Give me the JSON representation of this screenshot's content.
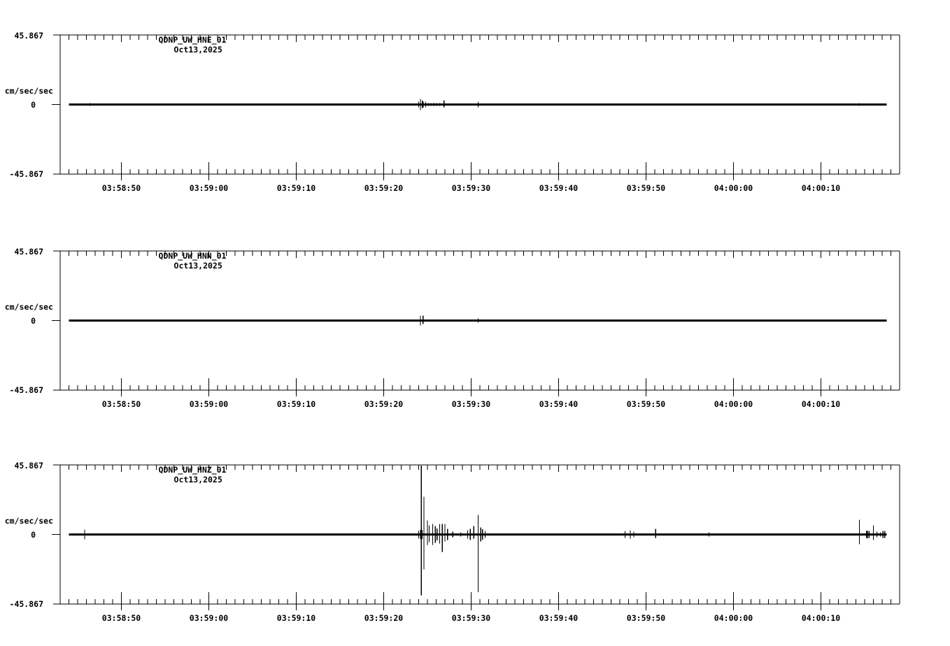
{
  "app": {
    "background_color": "#ffffff",
    "foreground_color": "#000000",
    "kind": "three-component seismogram (acceleration traces)"
  },
  "chart_data": {
    "type": "line",
    "x_axis": {
      "start": "03:58:43.0",
      "end": "04:00:19.0",
      "major_tick_interval_sec": 10,
      "minor_tick_interval_sec": 1,
      "major_tick_labels": [
        "03:58:50",
        "03:59:00",
        "03:59:10",
        "03:59:20",
        "03:59:30",
        "03:59:40",
        "03:59:50",
        "04:00:00",
        "04:00:10"
      ]
    },
    "y_axis": {
      "max": 45.867,
      "min": -45.867,
      "max_label": "45.867",
      "min_label": "-45.867",
      "zero_label": "0",
      "unit": "cm/sec/sec"
    },
    "panels": [
      {
        "station": "QDNP_UW_HNE_01",
        "date": "Oct13,2025",
        "trace_start": "03:58:44.0",
        "trace_end": "04:00:17.5",
        "spikes": [
          {
            "time": "03:58:46.4",
            "up": 0.9,
            "down": 0.9
          },
          {
            "time": "03:59:24.0",
            "up": 1.8,
            "down": 1.8
          },
          {
            "time": "03:59:24.2",
            "up": 3.7,
            "down": 3.7
          },
          {
            "time": "03:59:24.4",
            "up": 2.8,
            "down": 2.3
          },
          {
            "time": "03:59:24.5",
            "up": 2.0,
            "down": 2.0
          },
          {
            "time": "03:59:24.8",
            "up": 1.8,
            "down": 1.8
          },
          {
            "time": "03:59:25.1",
            "up": 0.9,
            "down": 0.9
          },
          {
            "time": "03:59:25.4",
            "up": 0.9,
            "down": 0.9
          },
          {
            "time": "03:59:25.7",
            "up": 0.9,
            "down": 0.9
          },
          {
            "time": "03:59:26.0",
            "up": 0.9,
            "down": 0.9
          },
          {
            "time": "03:59:26.4",
            "up": 0.9,
            "down": 0.9
          },
          {
            "time": "03:59:26.9",
            "up": 2.8,
            "down": 1.8
          },
          {
            "time": "03:59:30.8",
            "up": 1.8,
            "down": 1.8
          },
          {
            "time": "04:00:14.4",
            "up": 0.9,
            "down": 0.9
          }
        ]
      },
      {
        "station": "QDNP_UW_HNN_01",
        "date": "Oct13,2025",
        "trace_start": "03:58:44.0",
        "trace_end": "04:00:17.5",
        "spikes": [
          {
            "time": "03:59:24.2",
            "up": 3.2,
            "down": 3.2
          },
          {
            "time": "03:59:24.5",
            "up": 3.2,
            "down": 2.3
          },
          {
            "time": "03:59:25.0",
            "up": 0.7,
            "down": 0.7
          },
          {
            "time": "03:59:25.4",
            "up": 0.7,
            "down": 0.7
          },
          {
            "time": "03:59:30.8",
            "up": 1.4,
            "down": 1.4
          },
          {
            "time": "04:00:09.6",
            "up": 0.7,
            "down": 0.7
          }
        ]
      },
      {
        "station": "QDNP_UW_HNZ_01",
        "date": "Oct13,2025",
        "trace_start": "03:58:44.0",
        "trace_end": "04:00:17.5",
        "spikes": [
          {
            "time": "03:58:45.8",
            "up": 3.2,
            "down": 3.2
          },
          {
            "time": "03:59:24.0",
            "up": 2.5,
            "down": 2.5
          },
          {
            "time": "03:59:24.2",
            "up": 3.0,
            "down": 3.0
          },
          {
            "time": "03:59:24.3",
            "up": 45.5,
            "down": 40.0
          },
          {
            "time": "03:59:24.4",
            "up": 3.0,
            "down": 3.0
          },
          {
            "time": "03:59:24.6",
            "up": 25.0,
            "down": 23.0
          },
          {
            "time": "03:59:25.0",
            "up": 9.2,
            "down": 6.9
          },
          {
            "time": "03:59:25.2",
            "up": 6.0,
            "down": 5.0
          },
          {
            "time": "03:59:25.6",
            "up": 6.9,
            "down": 6.9
          },
          {
            "time": "03:59:25.9",
            "up": 5.5,
            "down": 5.5
          },
          {
            "time": "03:59:26.1",
            "up": 4.0,
            "down": 4.0
          },
          {
            "time": "03:59:26.4",
            "up": 6.9,
            "down": 6.0
          },
          {
            "time": "03:59:26.7",
            "up": 6.9,
            "down": 11.5
          },
          {
            "time": "03:59:27.0",
            "up": 6.9,
            "down": 4.6
          },
          {
            "time": "03:59:27.3",
            "up": 3.7,
            "down": 3.7
          },
          {
            "time": "03:59:27.9",
            "up": 1.8,
            "down": 1.8
          },
          {
            "time": "03:59:28.8",
            "up": 1.4,
            "down": 1.4
          },
          {
            "time": "03:59:29.6",
            "up": 2.8,
            "down": 2.8
          },
          {
            "time": "03:59:29.9",
            "up": 3.7,
            "down": 3.7
          },
          {
            "time": "03:59:30.3",
            "up": 5.5,
            "down": 2.8
          },
          {
            "time": "03:59:30.8",
            "up": 12.9,
            "down": 38.0
          },
          {
            "time": "03:59:31.1",
            "up": 4.6,
            "down": 4.6
          },
          {
            "time": "03:59:31.3",
            "up": 3.5,
            "down": 3.5
          },
          {
            "time": "03:59:31.6",
            "up": 2.3,
            "down": 2.3
          },
          {
            "time": "03:59:47.6",
            "up": 2.3,
            "down": 2.3
          },
          {
            "time": "03:59:48.2",
            "up": 2.8,
            "down": 2.8
          },
          {
            "time": "03:59:48.6",
            "up": 1.8,
            "down": 1.8
          },
          {
            "time": "03:59:51.1",
            "up": 3.7,
            "down": 2.3
          },
          {
            "time": "03:59:57.2",
            "up": 1.4,
            "down": 1.4
          },
          {
            "time": "04:00:14.4",
            "up": 9.7,
            "down": 6.5
          },
          {
            "time": "04:00:15.2",
            "up": 2.3,
            "down": 2.3
          },
          {
            "time": "04:00:15.3",
            "up": 2.5,
            "down": 2.5
          },
          {
            "time": "04:00:15.5",
            "up": 2.3,
            "down": 2.3
          },
          {
            "time": "04:00:16.0",
            "up": 6.0,
            "down": 3.7
          },
          {
            "time": "04:00:16.4",
            "up": 1.8,
            "down": 1.8
          },
          {
            "time": "04:00:16.8",
            "up": 1.4,
            "down": 1.4
          },
          {
            "time": "04:00:17.1",
            "up": 2.3,
            "down": 2.3
          },
          {
            "time": "04:00:17.3",
            "up": 2.3,
            "down": 2.3
          }
        ]
      }
    ]
  }
}
